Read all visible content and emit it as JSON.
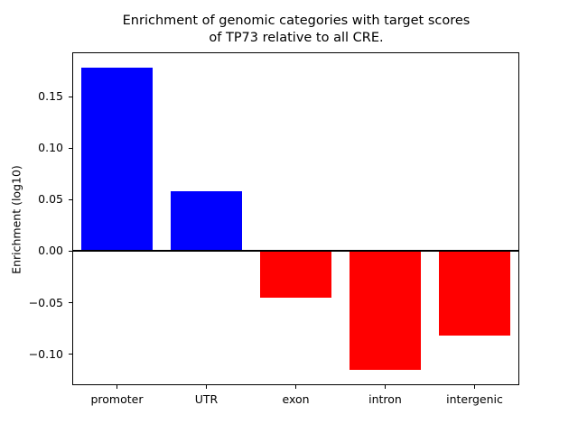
{
  "chart_data": {
    "type": "bar",
    "title_lines": [
      "Enrichment of genomic categories with target scores",
      "of TP73 relative to all CRE."
    ],
    "title": "Enrichment of genomic categories with target scores of TP73 relative to all CRE.",
    "categories": [
      "promoter",
      "UTR",
      "exon",
      "intron",
      "intergenic"
    ],
    "values": [
      0.178,
      0.058,
      -0.045,
      -0.115,
      -0.082
    ],
    "positive_color": "#0000ff",
    "negative_color": "#ff0000",
    "xlabel": "",
    "ylabel": "Enrichment (log10)",
    "ylim": [
      -0.13,
      0.193
    ],
    "yticks": [
      -0.1,
      -0.05,
      0.0,
      0.05,
      0.1,
      0.15
    ],
    "zero_line": true,
    "grid": false,
    "bar_width_fraction": 0.8,
    "axis_color": "#000000",
    "background_color": "#ffffff"
  }
}
